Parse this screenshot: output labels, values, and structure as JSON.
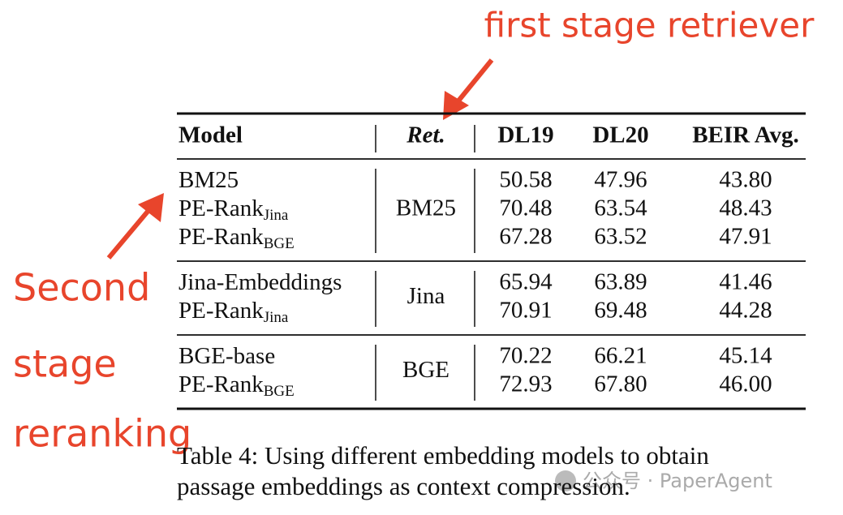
{
  "annotations": {
    "top": "first stage retriever",
    "left": [
      "Second",
      "stage",
      "reranking"
    ]
  },
  "table": {
    "header": [
      "Model",
      "Ret.",
      "DL19",
      "DL20",
      "BEIR Avg."
    ],
    "groups": [
      {
        "retriever": "BM25",
        "rows": [
          {
            "model": "BM25",
            "values": [
              "50.58",
              "47.96",
              "43.80"
            ]
          },
          {
            "model": "PE-Rank",
            "sub": "Jina",
            "values": [
              "70.48",
              "63.54",
              "48.43"
            ]
          },
          {
            "model": "PE-Rank",
            "sub": "BGE",
            "values": [
              "67.28",
              "63.52",
              "47.91"
            ]
          }
        ]
      },
      {
        "retriever": "Jina",
        "rows": [
          {
            "model": "Jina-Embeddings",
            "values": [
              "65.94",
              "63.89",
              "41.46"
            ]
          },
          {
            "model": "PE-Rank",
            "sub": "Jina",
            "values": [
              "70.91",
              "69.48",
              "44.28"
            ]
          }
        ]
      },
      {
        "retriever": "BGE",
        "rows": [
          {
            "model": "BGE-base",
            "values": [
              "70.22",
              "66.21",
              "45.14"
            ]
          },
          {
            "model": "PE-Rank",
            "sub": "BGE",
            "values": [
              "72.93",
              "67.80",
              "46.00"
            ]
          }
        ]
      }
    ]
  },
  "caption": [
    "Table 4: Using different embedding models to obtain",
    "passage embeddings as context compression."
  ],
  "watermark": "公众号 · PaperAgent"
}
